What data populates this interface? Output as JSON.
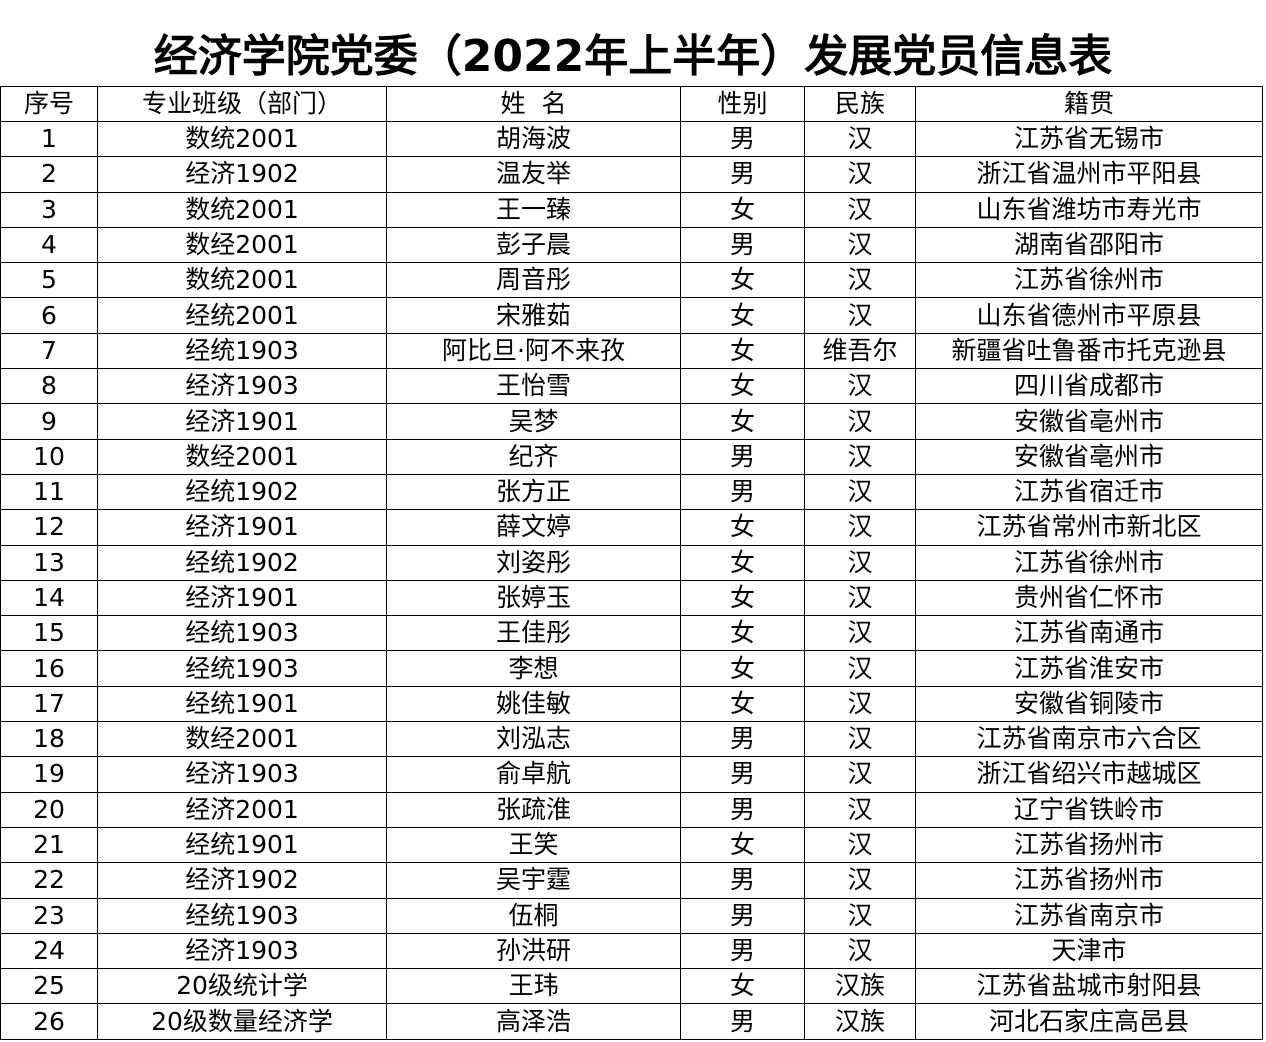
{
  "title": "经济学院党委（2022年上半年）发展党员信息表",
  "headers": {
    "no": "序号",
    "class": "专业班级（部门）",
    "name": "姓  名",
    "gender": "性别",
    "ethnicity": "民族",
    "native": "籍贯"
  },
  "rows": [
    {
      "no": "1",
      "class": "数统2001",
      "name": "胡海波",
      "gender": "男",
      "ethnicity": "汉",
      "native": "江苏省无锡市"
    },
    {
      "no": "2",
      "class": "经济1902",
      "name": "温友举",
      "gender": "男",
      "ethnicity": "汉",
      "native": "浙江省温州市平阳县"
    },
    {
      "no": "3",
      "class": "数统2001",
      "name": "王一臻",
      "gender": "女",
      "ethnicity": "汉",
      "native": "山东省潍坊市寿光市"
    },
    {
      "no": "4",
      "class": "数经2001",
      "name": "彭子晨",
      "gender": "男",
      "ethnicity": "汉",
      "native": "湖南省邵阳市"
    },
    {
      "no": "5",
      "class": "数统2001",
      "name": "周音彤",
      "gender": "女",
      "ethnicity": "汉",
      "native": "江苏省徐州市"
    },
    {
      "no": "6",
      "class": "经统2001",
      "name": "宋雅茹",
      "gender": "女",
      "ethnicity": "汉",
      "native": "山东省德州市平原县"
    },
    {
      "no": "7",
      "class": "经统1903",
      "name": "阿比旦·阿不来孜",
      "gender": "女",
      "ethnicity": "维吾尔",
      "native": "新疆省吐鲁番市托克逊县"
    },
    {
      "no": "8",
      "class": "经济1903",
      "name": "王怡雪",
      "gender": "女",
      "ethnicity": "汉",
      "native": "四川省成都市"
    },
    {
      "no": "9",
      "class": "经济1901",
      "name": "吴梦",
      "gender": "女",
      "ethnicity": "汉",
      "native": "安徽省亳州市"
    },
    {
      "no": "10",
      "class": "数经2001",
      "name": "纪齐",
      "gender": "男",
      "ethnicity": "汉",
      "native": "安徽省亳州市"
    },
    {
      "no": "11",
      "class": "经统1902",
      "name": "张方正",
      "gender": "男",
      "ethnicity": "汉",
      "native": "江苏省宿迁市"
    },
    {
      "no": "12",
      "class": "经济1901",
      "name": "薛文婷",
      "gender": "女",
      "ethnicity": "汉",
      "native": "江苏省常州市新北区"
    },
    {
      "no": "13",
      "class": "经统1902",
      "name": "刘姿彤",
      "gender": "女",
      "ethnicity": "汉",
      "native": "江苏省徐州市"
    },
    {
      "no": "14",
      "class": "经济1901",
      "name": "张婷玉",
      "gender": "女",
      "ethnicity": "汉",
      "native": "贵州省仁怀市"
    },
    {
      "no": "15",
      "class": "经统1903",
      "name": "王佳彤",
      "gender": "女",
      "ethnicity": "汉",
      "native": "江苏省南通市"
    },
    {
      "no": "16",
      "class": "经统1903",
      "name": "李想",
      "gender": "女",
      "ethnicity": "汉",
      "native": "江苏省淮安市"
    },
    {
      "no": "17",
      "class": "经统1901",
      "name": "姚佳敏",
      "gender": "女",
      "ethnicity": "汉",
      "native": "安徽省铜陵市"
    },
    {
      "no": "18",
      "class": "数经2001",
      "name": "刘泓志",
      "gender": "男",
      "ethnicity": "汉",
      "native": "江苏省南京市六合区"
    },
    {
      "no": "19",
      "class": "经济1903",
      "name": "俞卓航",
      "gender": "男",
      "ethnicity": "汉",
      "native": "浙江省绍兴市越城区"
    },
    {
      "no": "20",
      "class": "经济2001",
      "name": "张疏淮",
      "gender": "男",
      "ethnicity": "汉",
      "native": "辽宁省铁岭市"
    },
    {
      "no": "21",
      "class": "经统1901",
      "name": "王笑",
      "gender": "女",
      "ethnicity": "汉",
      "native": "江苏省扬州市"
    },
    {
      "no": "22",
      "class": "经济1902",
      "name": "吴宇霆",
      "gender": "男",
      "ethnicity": "汉",
      "native": "江苏省扬州市"
    },
    {
      "no": "23",
      "class": "经统1903",
      "name": "伍桐",
      "gender": "男",
      "ethnicity": "汉",
      "native": "江苏省南京市"
    },
    {
      "no": "24",
      "class": "经济1903",
      "name": "孙洪研",
      "gender": "男",
      "ethnicity": "汉",
      "native": "天津市"
    },
    {
      "no": "25",
      "class": "20级统计学",
      "name": "王玮",
      "gender": "女",
      "ethnicity": "汉族",
      "native": "江苏省盐城市射阳县"
    },
    {
      "no": "26",
      "class": "20级数量经济学",
      "name": "高泽浩",
      "gender": "男",
      "ethnicity": "汉族",
      "native": "河北石家庄高邑县"
    }
  ]
}
